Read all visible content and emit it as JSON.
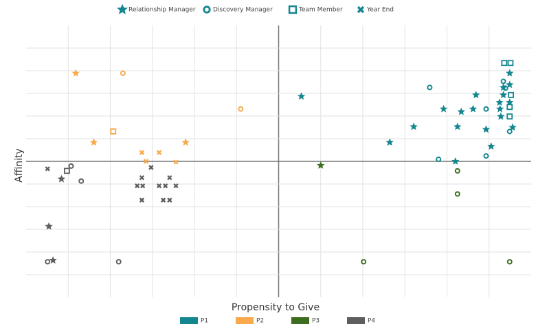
{
  "chart_data": {
    "type": "scatter",
    "x_label": "Propensity to Give",
    "y_label": "Affinity",
    "xlim": [
      -6,
      6
    ],
    "ylim": [
      -6,
      6
    ],
    "xticks": [
      -5,
      -4,
      -3,
      -2,
      -1,
      0,
      1,
      2,
      3,
      4,
      5
    ],
    "yticks": [
      -5,
      -4,
      -3,
      -2,
      -1,
      0,
      1,
      2,
      3,
      4,
      5
    ],
    "grid": true,
    "color_legend": [
      {
        "name": "P1",
        "color": "#14868f"
      },
      {
        "name": "P2",
        "color": "#f8aa4c"
      },
      {
        "name": "P3",
        "color": "#3d6e1f"
      },
      {
        "name": "P4",
        "color": "#5e5e5e"
      }
    ],
    "series": [
      {
        "name": "Relationship Manager",
        "marker": "star",
        "color": "#14868f",
        "x": [
          0.54,
          2.64,
          3.21,
          3.92,
          4.25,
          4.2,
          4.34,
          4.62,
          4.69,
          4.93,
          5.05,
          5.25,
          5.26,
          5.28,
          5.34,
          5.34,
          5.49,
          5.49,
          5.49,
          5.56,
          -4.82,
          -4.39,
          -2.21,
          1.0,
          -5.16,
          -5.46,
          -5.36
        ],
        "values": [
          2.87,
          0.84,
          1.53,
          2.31,
          1.53,
          0,
          2.19,
          2.31,
          2.93,
          1.41,
          0.66,
          2.6,
          2.31,
          1.98,
          3.26,
          2.93,
          3.89,
          3.38,
          2.6,
          1.5,
          3.89,
          0.84,
          0.84,
          -0.18,
          -0.78,
          -2.87,
          -4.37
        ],
        "colors": [
          "#14868f",
          "#14868f",
          "#14868f",
          "#14868f",
          "#14868f",
          "#14868f",
          "#14868f",
          "#14868f",
          "#14868f",
          "#14868f",
          "#14868f",
          "#14868f",
          "#14868f",
          "#14868f",
          "#14868f",
          "#14868f",
          "#14868f",
          "#14868f",
          "#14868f",
          "#14868f",
          "#f8aa4c",
          "#f8aa4c",
          "#f8aa4c",
          "#3d6e1f",
          "#5e5e5e",
          "#5e5e5e",
          "#5e5e5e"
        ]
      },
      {
        "name": "Discovery Manager",
        "marker": "circle",
        "color": "#14868f",
        "x": [
          3.59,
          3.8,
          4.93,
          4.93,
          5.34,
          5.39,
          5.49,
          -3.7,
          -0.9,
          4.25,
          4.25,
          2.02,
          5.49,
          -4.93,
          -4.69,
          -5.49,
          -3.8
        ],
        "values": [
          3.26,
          0.09,
          2.31,
          0.24,
          3.53,
          3.23,
          1.32,
          3.89,
          2.31,
          -0.42,
          -1.44,
          -4.43,
          -4.43,
          -0.21,
          -0.87,
          -4.43,
          -4.43
        ],
        "colors": [
          "#14868f",
          "#14868f",
          "#14868f",
          "#14868f",
          "#14868f",
          "#14868f",
          "#14868f",
          "#f8aa4c",
          "#f8aa4c",
          "#3d6e1f",
          "#3d6e1f",
          "#3d6e1f",
          "#3d6e1f",
          "#5e5e5e",
          "#5e5e5e",
          "#5e5e5e",
          "#5e5e5e"
        ]
      },
      {
        "name": "Team Member",
        "marker": "square",
        "color": "#14868f",
        "x": [
          5.36,
          5.51,
          5.52,
          5.49,
          5.49,
          -3.93,
          -5.03
        ],
        "values": [
          4.34,
          4.34,
          2.93,
          2.4,
          1.98,
          1.32,
          -0.42
        ],
        "colors": [
          "#14868f",
          "#14868f",
          "#14868f",
          "#14868f",
          "#14868f",
          "#f8aa4c",
          "#5e5e5e"
        ]
      },
      {
        "name": "Year End",
        "marker": "x",
        "color": "#14868f",
        "x": [
          -3.25,
          -2.84,
          -3.15,
          -2.44,
          -5.49,
          -3.03,
          -3.25,
          -2.59,
          -3.36,
          -3.23,
          -2.84,
          -2.69,
          -2.44,
          -3.25,
          -2.74,
          -2.59
        ],
        "values": [
          0.39,
          0.39,
          0,
          -0.03,
          -0.33,
          -0.27,
          -0.72,
          -0.72,
          -1.08,
          -1.08,
          -1.08,
          -1.08,
          -1.08,
          -1.71,
          -1.71,
          -1.71
        ],
        "colors": [
          "#f8aa4c",
          "#f8aa4c",
          "#f8aa4c",
          "#f8aa4c",
          "#5e5e5e",
          "#5e5e5e",
          "#5e5e5e",
          "#5e5e5e",
          "#5e5e5e",
          "#5e5e5e",
          "#5e5e5e",
          "#5e5e5e",
          "#5e5e5e",
          "#5e5e5e",
          "#5e5e5e",
          "#5e5e5e"
        ]
      }
    ]
  }
}
